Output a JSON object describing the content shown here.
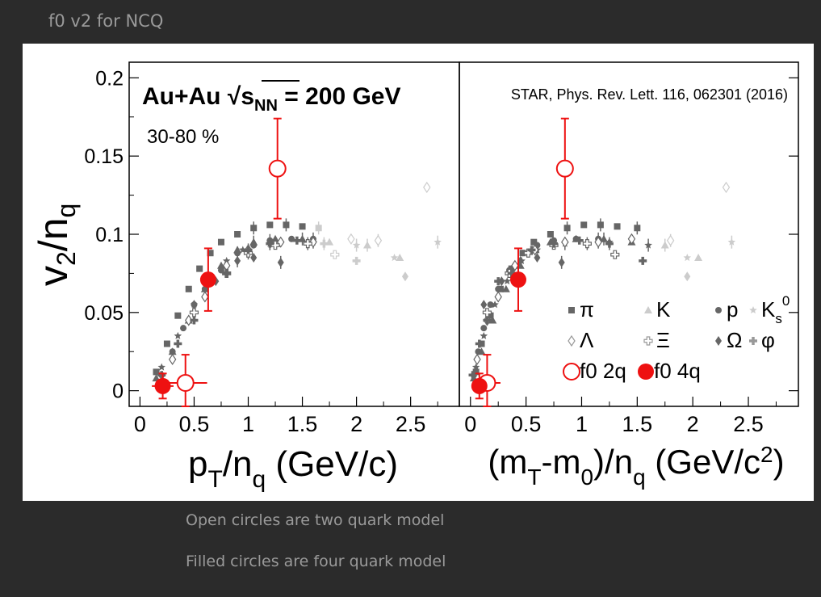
{
  "slide_title": "f0 v2 for NCQ",
  "captions": [
    "Open circles are two quark model",
    "Filled circles are four quark model"
  ],
  "colors": {
    "background": "#2b2b2b",
    "f0": "#ee1111",
    "reference_dark": "#666666",
    "reference_light": "#cccccc"
  },
  "chart_data": [
    {
      "type": "scatter",
      "panel": "left",
      "title": "Au+Au √s_NN = 200 GeV",
      "annotation": "30-80 %",
      "xlabel": "p_T/n_q (GeV/c)",
      "ylabel": "v_2/n_q",
      "xlim": [
        -0.1,
        2.95
      ],
      "ylim": [
        -0.01,
        0.21
      ],
      "x_ticks": [
        "0",
        "0.5",
        "1",
        "1.5",
        "2",
        "2.5"
      ],
      "y_ticks": [
        "0",
        "0.05",
        "0.1",
        "0.15",
        "0.2"
      ],
      "series": [
        {
          "name": "f0 2q",
          "marker": "open-circle",
          "color": "#ee1111",
          "points": [
            {
              "x": 0.42,
              "y": 0.005,
              "xerr": 0.2,
              "yerr": 0.018
            },
            {
              "x": 1.27,
              "y": 0.142,
              "yerr": 0.032
            }
          ]
        },
        {
          "name": "f0 4q",
          "marker": "filled-circle",
          "color": "#ee1111",
          "points": [
            {
              "x": 0.21,
              "y": 0.003,
              "xerr": 0.1,
              "yerr": 0.008
            },
            {
              "x": 0.63,
              "y": 0.071,
              "yerr": 0.02
            }
          ]
        },
        {
          "name": "π",
          "marker": "square",
          "points": [
            [
              0.15,
              0.012
            ],
            [
              0.25,
              0.03
            ],
            [
              0.35,
              0.048
            ],
            [
              0.45,
              0.065
            ],
            [
              0.55,
              0.078
            ],
            [
              0.65,
              0.088
            ],
            [
              0.75,
              0.095
            ],
            [
              0.9,
              0.1
            ],
            [
              1.05,
              0.104
            ],
            [
              1.2,
              0.106
            ],
            [
              1.35,
              0.106
            ],
            [
              1.5,
              0.105
            ],
            [
              1.65,
              0.104
            ]
          ]
        },
        {
          "name": "K",
          "marker": "triangle",
          "points": [
            [
              0.15,
              0.008
            ],
            [
              0.3,
              0.025
            ],
            [
              0.45,
              0.045
            ],
            [
              0.6,
              0.065
            ],
            [
              0.75,
              0.08
            ],
            [
              0.9,
              0.09
            ],
            [
              1.05,
              0.095
            ],
            [
              1.25,
              0.097
            ],
            [
              1.5,
              0.097
            ],
            [
              1.75,
              0.095
            ],
            [
              2.1,
              0.093
            ],
            [
              2.4,
              0.085
            ]
          ]
        },
        {
          "name": "p",
          "marker": "circle",
          "points": [
            [
              0.2,
              0.01
            ],
            [
              0.3,
              0.025
            ],
            [
              0.4,
              0.04
            ],
            [
              0.5,
              0.055
            ],
            [
              0.6,
              0.065
            ],
            [
              0.75,
              0.077
            ],
            [
              0.9,
              0.088
            ],
            [
              1.05,
              0.093
            ],
            [
              1.2,
              0.096
            ],
            [
              1.4,
              0.097
            ],
            [
              1.6,
              0.097
            ]
          ]
        },
        {
          "name": "K_s^0",
          "marker": "star",
          "points": [
            [
              0.2,
              0.015
            ],
            [
              0.35,
              0.035
            ],
            [
              0.5,
              0.055
            ],
            [
              0.65,
              0.07
            ],
            [
              0.8,
              0.083
            ],
            [
              0.95,
              0.09
            ],
            [
              1.2,
              0.094
            ],
            [
              1.6,
              0.095
            ],
            [
              2.0,
              0.093
            ],
            [
              2.35,
              0.085
            ],
            [
              2.75,
              0.095
            ]
          ]
        },
        {
          "name": "Λ",
          "marker": "open-diamond",
          "points": [
            [
              0.3,
              0.02
            ],
            [
              0.45,
              0.045
            ],
            [
              0.6,
              0.06
            ],
            [
              0.8,
              0.08
            ],
            [
              1.0,
              0.09
            ],
            [
              1.3,
              0.095
            ],
            [
              1.6,
              0.095
            ],
            [
              1.95,
              0.097
            ],
            [
              2.2,
              0.096
            ],
            [
              2.65,
              0.13
            ]
          ]
        },
        {
          "name": "Ξ",
          "marker": "open-cross",
          "points": [
            [
              0.5,
              0.05
            ],
            [
              0.8,
              0.075
            ],
            [
              1.0,
              0.088
            ],
            [
              1.25,
              0.093
            ],
            [
              1.55,
              0.094
            ],
            [
              1.8,
              0.087
            ]
          ]
        },
        {
          "name": "Ω",
          "marker": "diamond",
          "points": [
            [
              0.5,
              0.055
            ],
            [
              0.7,
              0.07
            ],
            [
              0.9,
              0.083
            ],
            [
              1.05,
              0.085
            ],
            [
              1.3,
              0.082
            ],
            [
              2.45,
              0.073
            ]
          ]
        },
        {
          "name": "φ",
          "marker": "cross",
          "points": [
            [
              0.2,
              0.01
            ],
            [
              0.35,
              0.03
            ],
            [
              0.5,
              0.045
            ],
            [
              0.65,
              0.07
            ],
            [
              0.8,
              0.075
            ],
            [
              1.0,
              0.09
            ],
            [
              1.2,
              0.094
            ],
            [
              1.45,
              0.096
            ],
            [
              1.7,
              0.094
            ],
            [
              2.0,
              0.083
            ]
          ]
        }
      ]
    },
    {
      "type": "scatter",
      "panel": "right",
      "title": "STAR, Phys. Rev. Lett. 116, 062301 (2016)",
      "xlabel": "(m_T-m_0)/n_q (GeV/c^2)",
      "ylabel": "",
      "xlim": [
        -0.1,
        2.95
      ],
      "ylim": [
        -0.01,
        0.21
      ],
      "x_ticks": [
        "0",
        "0.5",
        "1",
        "1.5",
        "2",
        "2.5"
      ],
      "legend": {
        "position": "lower-right",
        "entries": [
          "π",
          "K",
          "p",
          "K_s^0",
          "Λ",
          "Ξ",
          "Ω",
          "φ",
          "f0 2q",
          "f0 4q"
        ]
      },
      "series": [
        {
          "name": "f0 2q",
          "marker": "open-circle",
          "color": "#ee1111",
          "points": [
            {
              "x": 0.15,
              "y": 0.005,
              "xerr": 0.12,
              "yerr": 0.018
            },
            {
              "x": 0.85,
              "y": 0.142,
              "yerr": 0.032
            }
          ]
        },
        {
          "name": "f0 4q",
          "marker": "filled-circle",
          "color": "#ee1111",
          "points": [
            {
              "x": 0.08,
              "y": 0.003,
              "xerr": 0.05,
              "yerr": 0.008
            },
            {
              "x": 0.43,
              "y": 0.071,
              "yerr": 0.02
            }
          ]
        },
        {
          "name": "π",
          "marker": "square",
          "points": [
            [
              0.05,
              0.012
            ],
            [
              0.1,
              0.03
            ],
            [
              0.18,
              0.048
            ],
            [
              0.27,
              0.065
            ],
            [
              0.37,
              0.078
            ],
            [
              0.47,
              0.088
            ],
            [
              0.57,
              0.095
            ],
            [
              0.72,
              0.1
            ],
            [
              0.87,
              0.104
            ],
            [
              1.02,
              0.106
            ],
            [
              1.17,
              0.106
            ],
            [
              1.32,
              0.105
            ],
            [
              1.5,
              0.104
            ]
          ]
        },
        {
          "name": "K",
          "marker": "triangle",
          "points": [
            [
              0.03,
              0.008
            ],
            [
              0.1,
              0.025
            ],
            [
              0.2,
              0.045
            ],
            [
              0.32,
              0.065
            ],
            [
              0.45,
              0.08
            ],
            [
              0.58,
              0.09
            ],
            [
              0.72,
              0.095
            ],
            [
              0.95,
              0.097
            ],
            [
              1.2,
              0.097
            ],
            [
              1.45,
              0.095
            ],
            [
              1.75,
              0.093
            ],
            [
              2.05,
              0.085
            ]
          ]
        },
        {
          "name": "p",
          "marker": "circle",
          "points": [
            [
              0.03,
              0.01
            ],
            [
              0.07,
              0.025
            ],
            [
              0.12,
              0.04
            ],
            [
              0.18,
              0.055
            ],
            [
              0.25,
              0.065
            ],
            [
              0.35,
              0.077
            ],
            [
              0.47,
              0.088
            ],
            [
              0.6,
              0.093
            ],
            [
              0.75,
              0.096
            ],
            [
              0.95,
              0.097
            ],
            [
              1.15,
              0.097
            ]
          ]
        },
        {
          "name": "K_s^0",
          "marker": "star",
          "points": [
            [
              0.05,
              0.015
            ],
            [
              0.12,
              0.035
            ],
            [
              0.22,
              0.055
            ],
            [
              0.33,
              0.07
            ],
            [
              0.46,
              0.083
            ],
            [
              0.6,
              0.09
            ],
            [
              0.85,
              0.094
            ],
            [
              1.25,
              0.095
            ],
            [
              1.6,
              0.093
            ],
            [
              1.95,
              0.085
            ],
            [
              2.35,
              0.095
            ]
          ]
        },
        {
          "name": "Λ",
          "marker": "open-diamond",
          "points": [
            [
              0.06,
              0.02
            ],
            [
              0.15,
              0.045
            ],
            [
              0.25,
              0.06
            ],
            [
              0.4,
              0.08
            ],
            [
              0.58,
              0.09
            ],
            [
              0.85,
              0.095
            ],
            [
              1.15,
              0.095
            ],
            [
              1.45,
              0.097
            ],
            [
              1.8,
              0.096
            ],
            [
              2.3,
              0.13
            ]
          ]
        },
        {
          "name": "Ξ",
          "marker": "open-cross",
          "points": [
            [
              0.15,
              0.05
            ],
            [
              0.35,
              0.075
            ],
            [
              0.52,
              0.088
            ],
            [
              0.75,
              0.093
            ],
            [
              1.05,
              0.094
            ],
            [
              1.3,
              0.087
            ]
          ]
        },
        {
          "name": "Ω",
          "marker": "diamond",
          "points": [
            [
              0.12,
              0.055
            ],
            [
              0.28,
              0.07
            ],
            [
              0.45,
              0.083
            ],
            [
              0.6,
              0.085
            ],
            [
              0.82,
              0.082
            ],
            [
              1.95,
              0.073
            ]
          ]
        },
        {
          "name": "φ",
          "marker": "cross",
          "points": [
            [
              0.02,
              0.01
            ],
            [
              0.08,
              0.03
            ],
            [
              0.15,
              0.045
            ],
            [
              0.25,
              0.07
            ],
            [
              0.37,
              0.075
            ],
            [
              0.55,
              0.09
            ],
            [
              0.75,
              0.094
            ],
            [
              0.98,
              0.096
            ],
            [
              1.25,
              0.094
            ],
            [
              1.55,
              0.083
            ]
          ]
        }
      ]
    }
  ]
}
